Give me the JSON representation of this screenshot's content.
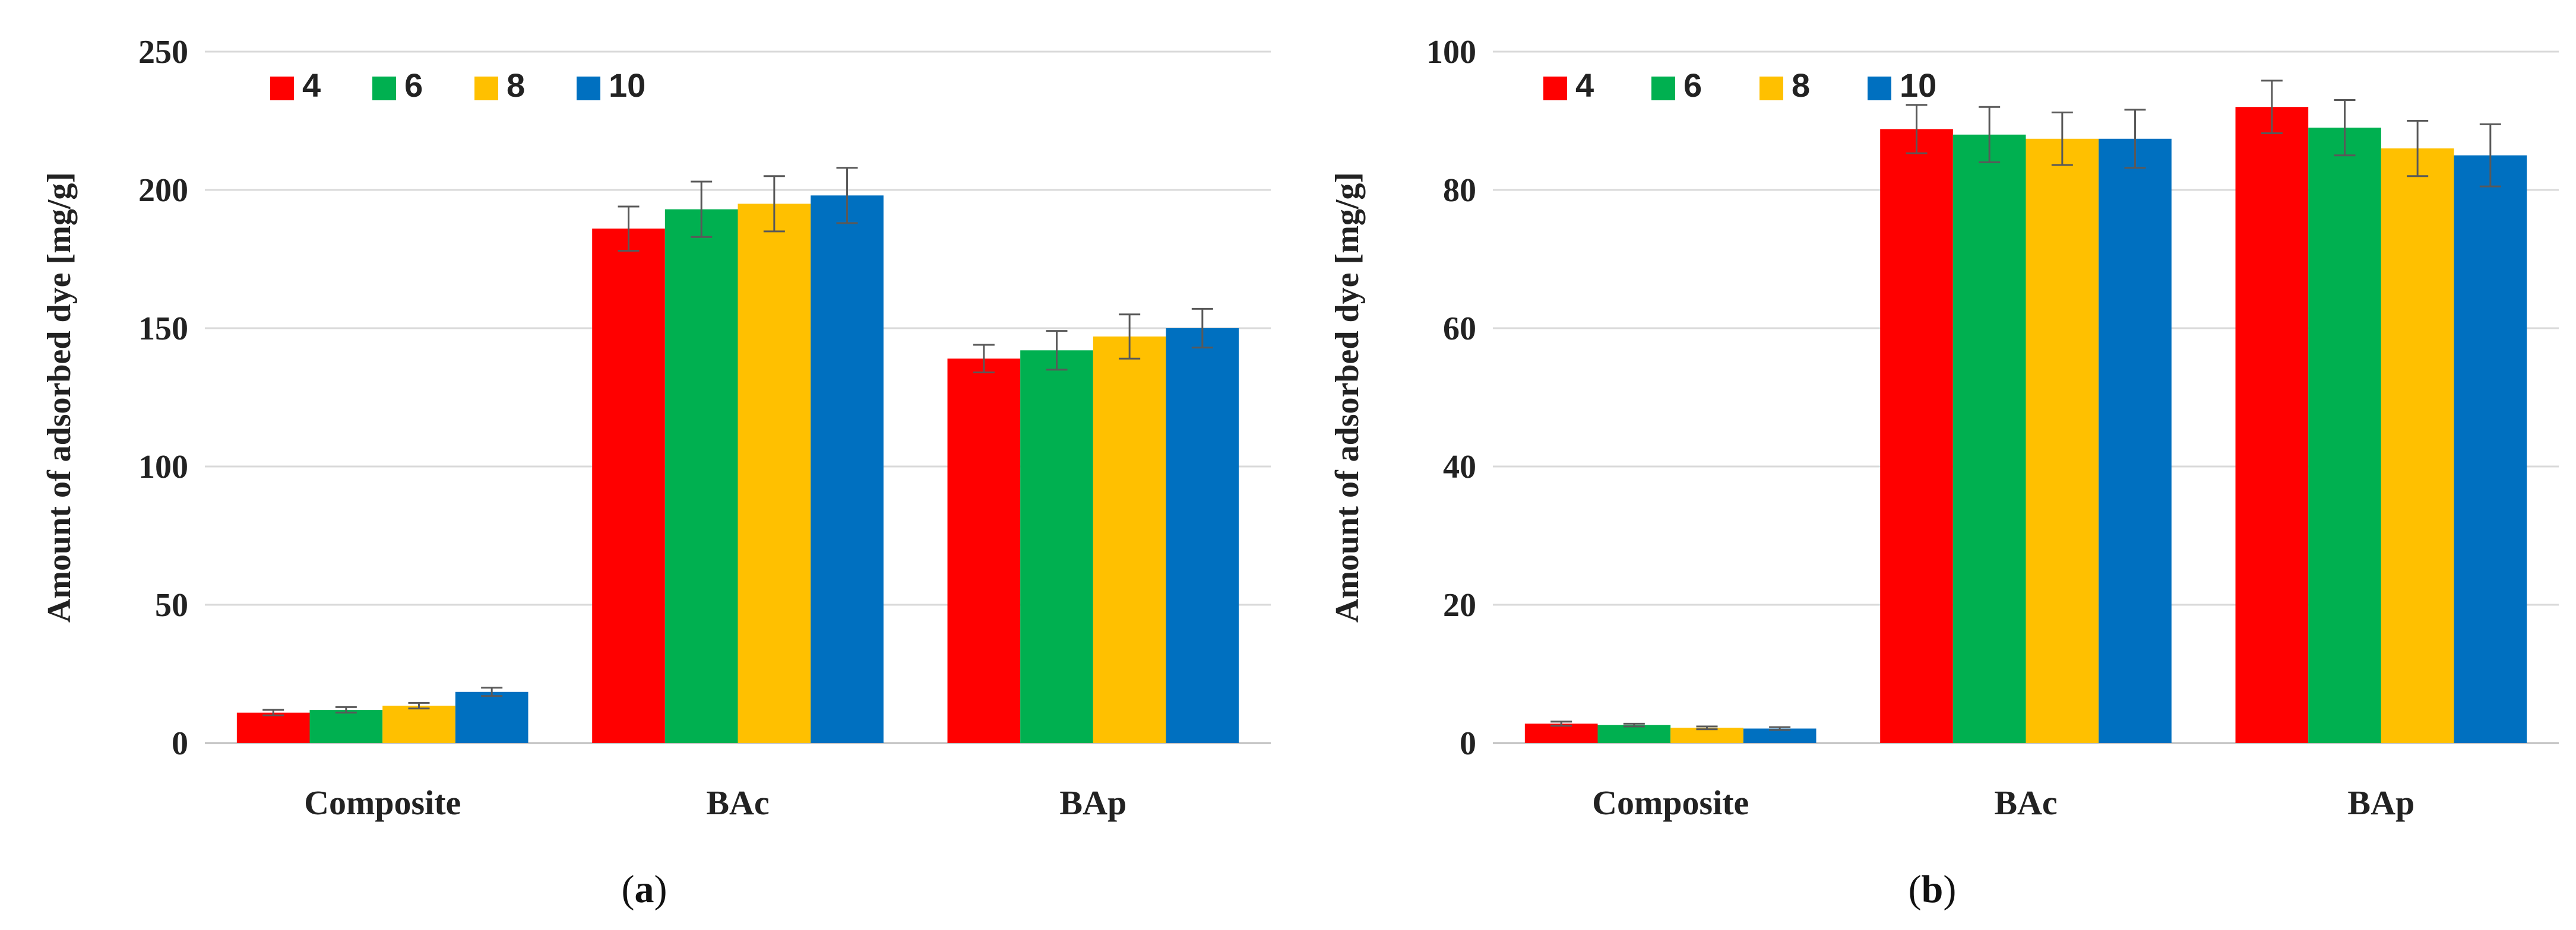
{
  "chart_data": [
    {
      "type": "bar",
      "id": "a",
      "caption": "a",
      "ylabel": "Amount of adsorbed dye [mg/g]",
      "ylim": [
        0,
        250
      ],
      "yticks": [
        0,
        50,
        100,
        150,
        200,
        250
      ],
      "grid": true,
      "legend_position": "top-left",
      "categories": [
        "Composite",
        "BAc",
        "BAp"
      ],
      "series": [
        {
          "name": "4",
          "color": "#ff0000",
          "values": [
            11,
            186,
            139
          ],
          "errors": [
            1,
            8,
            5
          ]
        },
        {
          "name": "6",
          "color": "#00b050",
          "values": [
            12,
            193,
            142
          ],
          "errors": [
            1,
            10,
            7
          ]
        },
        {
          "name": "8",
          "color": "#ffc000",
          "values": [
            13.5,
            195,
            147
          ],
          "errors": [
            1,
            10,
            8
          ]
        },
        {
          "name": "10",
          "color": "#0070c0",
          "values": [
            18.5,
            198,
            150
          ],
          "errors": [
            1.5,
            10,
            7
          ]
        }
      ]
    },
    {
      "type": "bar",
      "id": "b",
      "caption": "b",
      "ylabel": "Amount of adsorbed dye  [mg/g]",
      "ylim": [
        0,
        100
      ],
      "yticks": [
        0,
        20,
        40,
        60,
        80,
        100
      ],
      "grid": true,
      "legend_position": "top-left",
      "categories": [
        "Composite",
        "BAc",
        "BAp"
      ],
      "series": [
        {
          "name": "4",
          "color": "#ff0000",
          "values": [
            2.8,
            88.8,
            92
          ],
          "errors": [
            0.3,
            3.5,
            3.8
          ]
        },
        {
          "name": "6",
          "color": "#00b050",
          "values": [
            2.6,
            88,
            89
          ],
          "errors": [
            0.2,
            4,
            4
          ]
        },
        {
          "name": "8",
          "color": "#ffc000",
          "values": [
            2.2,
            87.4,
            86
          ],
          "errors": [
            0.2,
            3.8,
            4
          ]
        },
        {
          "name": "10",
          "color": "#0070c0",
          "values": [
            2.1,
            87.4,
            85
          ],
          "errors": [
            0.2,
            4.2,
            4.5
          ]
        }
      ]
    }
  ]
}
